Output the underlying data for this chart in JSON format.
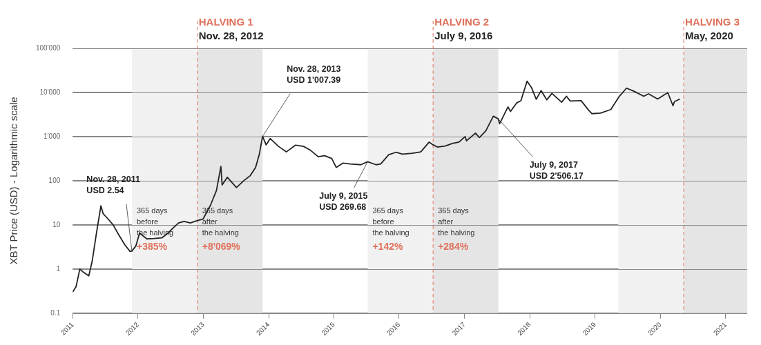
{
  "chart_data": {
    "type": "line",
    "ylabel": "XBT Price (USD) - Logarithmic scale",
    "log": true,
    "grid": "y",
    "line_style": "solid",
    "marker": "none",
    "xlim": [
      "2011-01-01",
      "2021-05-01"
    ],
    "xticks": [
      "2011",
      "2012",
      "2013",
      "2014",
      "2015",
      "2016",
      "2017",
      "2018",
      "2019",
      "2020",
      "2021"
    ],
    "ylim": [
      0.1,
      100000
    ],
    "yticks": [
      {
        "value": 0.1,
        "label": "0.1"
      },
      {
        "value": 1,
        "label": "1"
      },
      {
        "value": 10,
        "label": "10"
      },
      {
        "value": 100,
        "label": "100"
      },
      {
        "value": 1000,
        "label": "1'000"
      },
      {
        "value": 10000,
        "label": "10'000"
      },
      {
        "value": 100000,
        "label": "100'000"
      }
    ],
    "series": [
      {
        "color": "#222222",
        "x": [
          "2011-01-01",
          "2011-01-20",
          "2011-02-10",
          "2011-03-01",
          "2011-04-01",
          "2011-04-20",
          "2011-05-15",
          "2011-06-08",
          "2011-06-20",
          "2011-07-15",
          "2011-08-15",
          "2011-09-15",
          "2011-10-20",
          "2011-11-18",
          "2011-11-28",
          "2011-12-20",
          "2012-01-10",
          "2012-02-20",
          "2012-04-01",
          "2012-05-15",
          "2012-06-15",
          "2012-07-20",
          "2012-08-15",
          "2012-09-15",
          "2012-10-20",
          "2012-11-28",
          "2012-12-30",
          "2013-02-10",
          "2013-03-15",
          "2013-04-09",
          "2013-04-16",
          "2013-05-15",
          "2013-07-05",
          "2013-08-15",
          "2013-09-20",
          "2013-10-20",
          "2013-11-10",
          "2013-11-28",
          "2013-12-18",
          "2014-01-10",
          "2014-02-25",
          "2014-04-10",
          "2014-06-01",
          "2014-07-15",
          "2014-08-20",
          "2014-10-05",
          "2014-11-10",
          "2014-12-20",
          "2015-01-14",
          "2015-02-20",
          "2015-04-01",
          "2015-06-01",
          "2015-07-09",
          "2015-08-25",
          "2015-09-20",
          "2015-11-04",
          "2015-12-15",
          "2016-01-20",
          "2016-03-15",
          "2016-05-01",
          "2016-06-17",
          "2016-07-09",
          "2016-08-02",
          "2016-09-15",
          "2016-10-25",
          "2016-12-01",
          "2017-01-04",
          "2017-01-12",
          "2017-03-03",
          "2017-03-25",
          "2017-04-30",
          "2017-06-11",
          "2017-07-09",
          "2017-07-16",
          "2017-09-01",
          "2017-09-15",
          "2017-10-20",
          "2017-11-12",
          "2017-12-17",
          "2018-01-10",
          "2018-02-06",
          "2018-03-05",
          "2018-04-06",
          "2018-05-05",
          "2018-06-28",
          "2018-07-25",
          "2018-08-15",
          "2018-10-15",
          "2018-11-25",
          "2018-12-15",
          "2019-02-01",
          "2019-03-30",
          "2019-05-15",
          "2019-06-26",
          "2019-08-10",
          "2019-09-30",
          "2019-10-27",
          "2019-12-17",
          "2020-02-12",
          "2020-03-12",
          "2020-03-20",
          "2020-04-20"
        ],
        "values": [
          0.3,
          0.4,
          1.0,
          0.85,
          0.7,
          1.5,
          7,
          27,
          18,
          14,
          10,
          6,
          3.5,
          2.5,
          2.54,
          3.3,
          6.5,
          4.8,
          4.9,
          5.1,
          6.4,
          8.8,
          11,
          12,
          11,
          12.5,
          13.5,
          28,
          60,
          210,
          80,
          120,
          70,
          100,
          130,
          200,
          400,
          1007.39,
          650,
          900,
          600,
          450,
          640,
          600,
          500,
          350,
          370,
          320,
          200,
          250,
          240,
          230,
          269.68,
          230,
          240,
          390,
          440,
          400,
          420,
          450,
          750,
          650,
          580,
          610,
          700,
          750,
          1000,
          800,
          1200,
          950,
          1350,
          2900,
          2506.17,
          1950,
          4700,
          3700,
          5800,
          6500,
          18000,
          13000,
          7000,
          11000,
          6800,
          9500,
          6000,
          8200,
          6400,
          6500,
          4000,
          3300,
          3400,
          4100,
          8000,
          12500,
          10500,
          8200,
          9300,
          7100,
          9900,
          5000,
          6200,
          7100
        ]
      }
    ],
    "bands": [
      {
        "axis": "x",
        "from": "2011-11-28",
        "to": "2012-11-28",
        "label": "365 days\nbefore\nthe halving\n+385%",
        "color": "#f1f1f1"
      },
      {
        "axis": "x",
        "from": "2012-11-28",
        "to": "2013-11-28",
        "label": "365 days\nafter\nthe halving\n+8'069%",
        "color": "#e5e5e5"
      },
      {
        "axis": "x",
        "from": "2015-07-09",
        "to": "2016-07-09",
        "label": "365 days\nbefore\nthe halving\n+142%",
        "color": "#f1f1f1"
      },
      {
        "axis": "x",
        "from": "2016-07-09",
        "to": "2017-07-09",
        "label": "365 days\nafter\nthe halving\n+284%",
        "color": "#e5e5e5"
      },
      {
        "axis": "x",
        "from": "2019-05-11",
        "to": "2020-05-11",
        "color": "#f1f1f1"
      },
      {
        "axis": "x",
        "from": "2020-05-11",
        "to": "2021-05-01",
        "color": "#e5e5e5"
      }
    ],
    "ref_lines": [
      {
        "axis": "x",
        "value": "2012-11-28",
        "label": "HALVING 1\nNov. 28, 2012",
        "color": "#e0705a",
        "line_style": "dashed"
      },
      {
        "axis": "x",
        "value": "2016-07-09",
        "label": "HALVING 2\nJuly 9, 2016",
        "color": "#e0705a",
        "line_style": "dashed"
      },
      {
        "axis": "x",
        "value": "2020-05-11",
        "label": "HALVING 3\nMay, 2020",
        "color": "#e0705a",
        "line_style": "dashed"
      }
    ],
    "annotations": [
      {
        "text": "Nov. 28, 2011\nUSD 2.54",
        "x": "2011-11-28",
        "y": 2.54
      },
      {
        "text": "Nov. 28, 2013\nUSD 1'007.39",
        "x": "2013-11-28",
        "y": 1007.39
      },
      {
        "text": "July 9, 2015\nUSD 269.68",
        "x": "2015-07-09",
        "y": 269.68
      },
      {
        "text": "July 9, 2017\nUSD 2'506.17",
        "x": "2017-07-09",
        "y": 2506.17
      }
    ]
  }
}
